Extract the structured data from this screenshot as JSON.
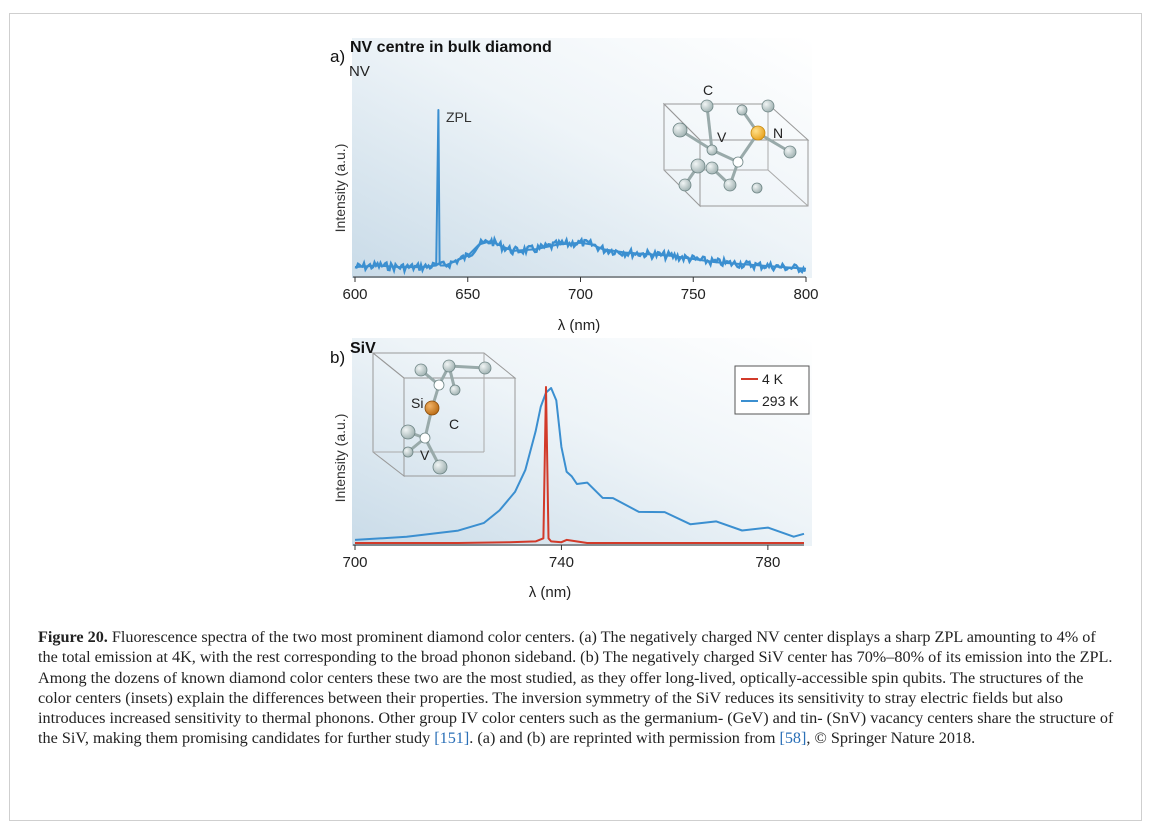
{
  "figure": {
    "caption_label": "Figure 20.",
    "caption_text": "Fluorescence spectra of the two most prominent diamond color centers. (a) The negatively charged NV center displays a sharp ZPL amounting to 4% of the total emission at 4K, with the rest corresponding to the broad phonon sideband. (b) The negatively charged SiV center has 70%–80% of its emission into the ZPL. Among the dozens of known diamond color centers these two are the most studied, as they offer long-lived, optically-accessible spin qubits. The structures of the color centers (insets) explain the differences between their properties. The inversion symmetry of the SiV reduces its sensitivity to stray electric fields but also introduces increased sensitivity to thermal phonons. Other group IV color centers such as the germanium- (GeV) and tin- (SnV) vacancy centers share the structure of the SiV, making them promising candidates for further study",
    "caption_ref1": "[151]",
    "caption_text2": ". (a) and (b) are reprinted with permission from",
    "caption_ref2": "[58]",
    "caption_text3": ", © Springer Nature 2018."
  },
  "chart_data": [
    {
      "type": "line",
      "panel_label": "a)",
      "title": "NV centre in bulk diamond",
      "subtitle": "NV",
      "xlabel": "λ (nm)",
      "ylabel": "Intensity (a.u.)",
      "xlim": [
        600,
        800
      ],
      "x_ticks": [
        600,
        650,
        700,
        750,
        800
      ],
      "grid": false,
      "annotations": [
        "ZPL"
      ],
      "inset_labels": [
        "C",
        "V",
        "N"
      ],
      "series": [
        {
          "color": "#3b8fd0",
          "x": [
            600,
            610,
            620,
            630,
            636,
            637,
            637.5,
            638,
            640,
            650,
            655,
            660,
            665,
            670,
            680,
            690,
            700,
            705,
            710,
            720,
            730,
            740,
            750,
            760,
            770,
            780,
            790,
            800
          ],
          "y": [
            0.03,
            0.04,
            0.03,
            0.03,
            0.04,
            1.0,
            0.05,
            0.04,
            0.04,
            0.1,
            0.17,
            0.19,
            0.16,
            0.13,
            0.14,
            0.17,
            0.18,
            0.17,
            0.14,
            0.12,
            0.11,
            0.1,
            0.08,
            0.06,
            0.05,
            0.04,
            0.03,
            0.02
          ]
        }
      ]
    },
    {
      "type": "line",
      "panel_label": "b)",
      "title": "SiV",
      "xlabel": "λ (nm)",
      "ylabel": "Intensity (a.u.)",
      "xlim": [
        700,
        787
      ],
      "x_ticks": [
        700,
        740,
        780
      ],
      "grid": false,
      "legend_position": "top-right",
      "inset_labels": [
        "Si",
        "C",
        "V"
      ],
      "series": [
        {
          "name": "4 K",
          "color": "#d23a2a",
          "x": [
            700,
            720,
            730,
            735,
            736.5,
            737,
            737.5,
            738,
            740,
            741,
            745,
            760,
            787
          ],
          "y": [
            0,
            0,
            0.005,
            0.01,
            0.03,
            1.0,
            0.03,
            0.01,
            0.005,
            0.02,
            0,
            0,
            0
          ]
        },
        {
          "name": "293 K",
          "color": "#3b8fd0",
          "x": [
            700,
            710,
            720,
            725,
            728,
            731,
            733,
            735,
            736,
            737,
            738,
            739,
            740,
            741,
            742,
            743,
            745,
            748,
            750,
            755,
            760,
            765,
            770,
            775,
            780,
            785,
            787
          ],
          "y": [
            0.02,
            0.04,
            0.08,
            0.13,
            0.21,
            0.33,
            0.47,
            0.72,
            0.88,
            0.97,
            1.0,
            0.92,
            0.62,
            0.46,
            0.43,
            0.4,
            0.37,
            0.31,
            0.27,
            0.22,
            0.18,
            0.14,
            0.12,
            0.1,
            0.08,
            0.06,
            0.04
          ]
        }
      ]
    }
  ]
}
